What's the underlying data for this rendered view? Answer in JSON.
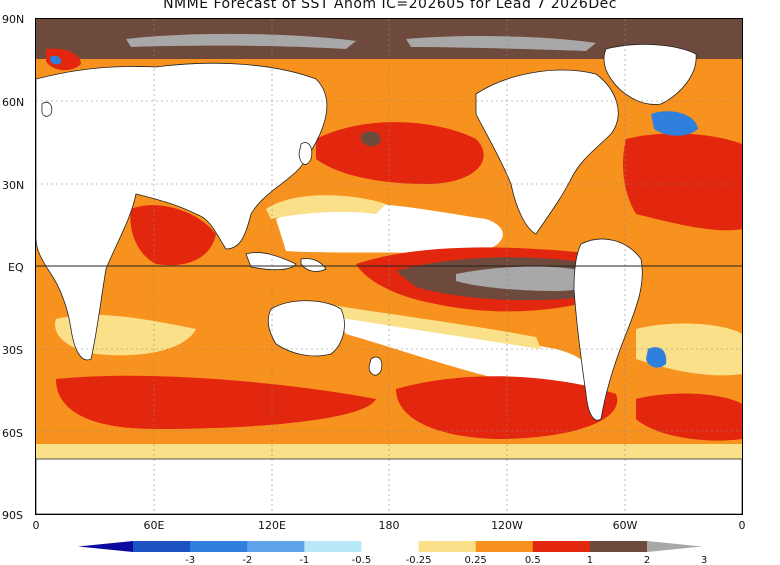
{
  "title": "NMME Forecast of SST Anom IC=202605 for Lead 7 2026Dec",
  "lat_labels": [
    "90N",
    "60N",
    "30N",
    "EQ",
    "30S",
    "60S",
    "90S"
  ],
  "lon_labels": [
    "0",
    "60E",
    "120E",
    "180",
    "120W",
    "60W",
    "0"
  ],
  "legend": {
    "levels": [
      "-3",
      "-2",
      "-1",
      "-0.5",
      "-0.25",
      "0.25",
      "0.5",
      "1",
      "2",
      "3"
    ],
    "colors": [
      "#0a0a9e",
      "#1d52c2",
      "#2f7fdd",
      "#5fa3ea",
      "#b9e8f6",
      "#ffffff",
      "#fbe08a",
      "#f7921e",
      "#e3270f",
      "#6e4a3c",
      "#a8a8a8"
    ]
  },
  "anomaly_colors": {
    "land": "#ffffff",
    "near_zero": "#ffffff",
    "anom_0_25_0_5": "#fbe08a",
    "anom_0_5_1": "#f7921e",
    "anom_1_2": "#e3270f",
    "anom_2_3": "#6e4a3c",
    "anom_gt_3": "#a8a8a8",
    "anom_neg_0_5_1": "#5fa3ea",
    "anom_neg_1_2": "#2f7fdd"
  }
}
